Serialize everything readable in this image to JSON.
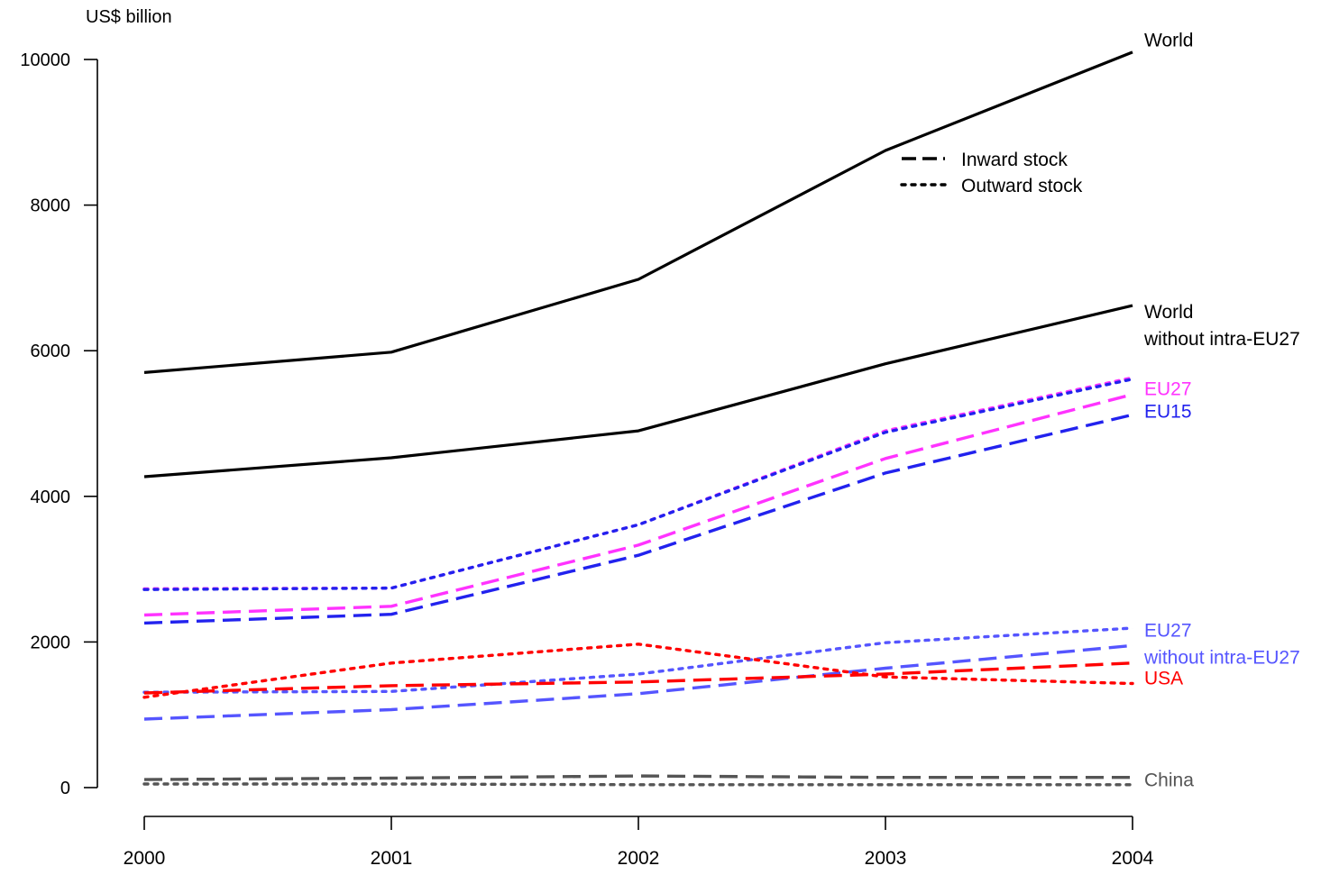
{
  "chart_data": {
    "type": "line",
    "ylabel": "US$ billion",
    "x": [
      2000,
      2001,
      2002,
      2003,
      2004
    ],
    "ylim": [
      0,
      10000
    ],
    "yticks": [
      0,
      2000,
      4000,
      6000,
      8000,
      10000
    ],
    "grid": false,
    "legend_position": "top-right",
    "legend": [
      {
        "label": "Inward stock",
        "style": "dashed"
      },
      {
        "label": "Outward stock",
        "style": "dotted"
      }
    ],
    "series": [
      {
        "name": "World",
        "label_key": "world",
        "style": "solid",
        "color": "#000000",
        "values": [
          5700,
          5980,
          6980,
          8750,
          10100
        ]
      },
      {
        "name": "World without intra-EU27",
        "label_key": "world_wo",
        "style": "solid",
        "color": "#000000",
        "values": [
          4270,
          4530,
          4900,
          5820,
          6620
        ]
      },
      {
        "name": "EU27",
        "label_key": "eu27",
        "style": "dotted",
        "color": "#ff33ff",
        "values": [
          2730,
          2740,
          3610,
          4900,
          5630
        ]
      },
      {
        "name": "EU27",
        "label_key": "eu27",
        "style": "dashed",
        "color": "#ff33ff",
        "values": [
          2370,
          2490,
          3330,
          4520,
          5400
        ]
      },
      {
        "name": "EU15",
        "label_key": "eu15",
        "style": "dotted",
        "color": "#2222ee",
        "values": [
          2720,
          2740,
          3610,
          4880,
          5610
        ]
      },
      {
        "name": "EU15",
        "label_key": "eu15",
        "style": "dashed",
        "color": "#2222ee",
        "values": [
          2260,
          2380,
          3190,
          4320,
          5120
        ]
      },
      {
        "name": "EU27 without intra-EU27",
        "label_key": "eu27_wo",
        "style": "dotted",
        "color": "#5555ff",
        "values": [
          1310,
          1320,
          1560,
          1990,
          2190
        ]
      },
      {
        "name": "EU27 without intra-EU27",
        "label_key": "eu27_wo",
        "style": "dashed",
        "color": "#5555ff",
        "values": [
          940,
          1070,
          1290,
          1640,
          1950
        ]
      },
      {
        "name": "USA",
        "label_key": "usa",
        "style": "dotted",
        "color": "#ff0000",
        "values": [
          1240,
          1710,
          1970,
          1520,
          1430
        ]
      },
      {
        "name": "USA",
        "label_key": "usa",
        "style": "dashed",
        "color": "#ff0000",
        "values": [
          1300,
          1400,
          1450,
          1560,
          1710
        ]
      },
      {
        "name": "China",
        "label_key": "china",
        "style": "dashed",
        "color": "#555555",
        "values": [
          110,
          130,
          160,
          140,
          140
        ]
      },
      {
        "name": "China",
        "label_key": "china",
        "style": "dotted",
        "color": "#555555",
        "values": [
          50,
          50,
          40,
          40,
          40
        ]
      }
    ],
    "end_labels": [
      {
        "key": "world",
        "lines": [
          "World"
        ],
        "color": "#000000",
        "value": 10180
      },
      {
        "key": "world_wo",
        "lines": [
          "World",
          "without intra-EU27"
        ],
        "color": "#000000",
        "value": 6450
      },
      {
        "key": "eu27",
        "lines": [
          "EU27"
        ],
        "color": "#ff33ff",
        "value": 5390
      },
      {
        "key": "eu15",
        "lines": [
          "EU15"
        ],
        "color": "#2222ee",
        "value": 5080
      },
      {
        "key": "eu27_wo",
        "lines": [
          "EU27",
          "without intra-EU27"
        ],
        "color": "#5555ff",
        "value": 2070
      },
      {
        "key": "usa",
        "lines": [
          "USA"
        ],
        "color": "#ff0000",
        "value": 1420
      },
      {
        "key": "china",
        "lines": [
          "China"
        ],
        "color": "#555555",
        "value": 20
      }
    ]
  }
}
